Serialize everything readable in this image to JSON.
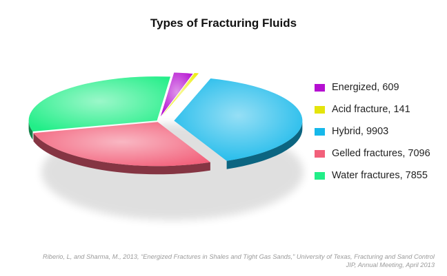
{
  "chart_data": {
    "type": "pie",
    "title": "Types of Fracturing Fluids",
    "slices": [
      {
        "label": "Energized",
        "value": 609,
        "color": "#b50fd1"
      },
      {
        "label": "Acid fracture",
        "value": 141,
        "color": "#eeee0c"
      },
      {
        "label": "Hybrid",
        "value": 9903,
        "color": "#16b8ea"
      },
      {
        "label": "Gelled fractures",
        "value": 7096,
        "color": "#f2607a"
      },
      {
        "label": "Water fractures",
        "value": 7855,
        "color": "#22ee88"
      }
    ],
    "legend_position": "right",
    "style": "3d-exploded"
  },
  "legend": {
    "items": [
      {
        "text": "Energized, 609",
        "color": "#b50fd1"
      },
      {
        "text": "Acid fracture, 141",
        "color": "#e4e40c"
      },
      {
        "text": "Hybrid, 9903",
        "color": "#16b8ea"
      },
      {
        "text": "Gelled fractures, 7096",
        "color": "#f2607a"
      },
      {
        "text": "Water fractures, 7855",
        "color": "#22ee88"
      }
    ]
  },
  "source": {
    "line1": "Riberio, L, and Sharma, M., 2013, “Energized Fractures in Shales and Tight Gas Sands,” University of Texas, Fracturing and Sand Control",
    "line2": "JIP, Annual Meeting, April 2013"
  }
}
